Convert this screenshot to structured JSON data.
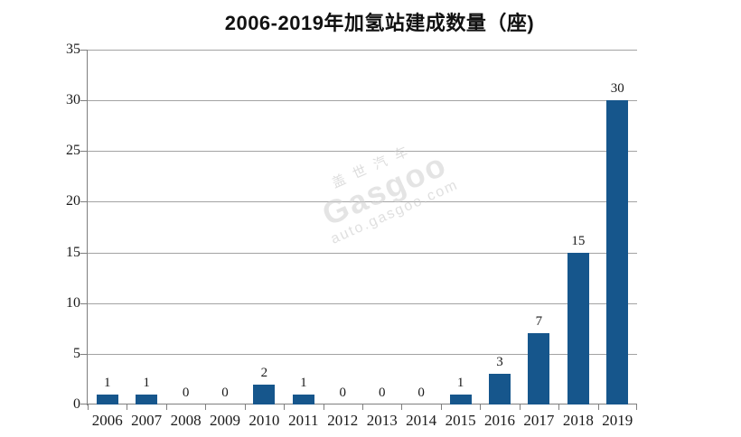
{
  "title": "2006-2019年加氢站建成数量（座)",
  "watermark": {
    "brand_cn": "盖世汽车",
    "brand_en": "Gasgoo",
    "url": "auto.gasgoo.com"
  },
  "chart_data": {
    "type": "bar",
    "title": "2006-2019年加氢站建成数量（座)",
    "categories": [
      "2006",
      "2007",
      "2008",
      "2009",
      "2010",
      "2011",
      "2012",
      "2013",
      "2014",
      "2015",
      "2016",
      "2017",
      "2018",
      "2019"
    ],
    "values": [
      1,
      1,
      0,
      0,
      2,
      1,
      0,
      0,
      0,
      1,
      3,
      7,
      15,
      30
    ],
    "data_labels": [
      1,
      1,
      0,
      0,
      2,
      1,
      0,
      0,
      0,
      1,
      3,
      7,
      15,
      30
    ],
    "xlabel": "",
    "ylabel": "",
    "ylim": [
      0,
      35
    ],
    "ytick_step": 5,
    "yticks": [
      0,
      5,
      10,
      15,
      20,
      25,
      30,
      35
    ],
    "grid": true,
    "legend": "none",
    "colors": {
      "bar": "#16568C",
      "gridline": "#A3A3A3",
      "axis": "#7F7F7F",
      "text": "#1A1A1A",
      "watermark": "#C8C8C8"
    }
  }
}
